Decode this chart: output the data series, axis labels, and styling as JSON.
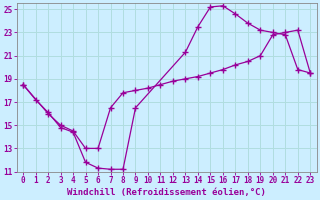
{
  "xlabel": "Windchill (Refroidissement éolien,°C)",
  "xlim": [
    -0.5,
    23.5
  ],
  "ylim": [
    11,
    25.5
  ],
  "xticks": [
    0,
    1,
    2,
    3,
    4,
    5,
    6,
    7,
    8,
    9,
    10,
    11,
    12,
    13,
    14,
    15,
    16,
    17,
    18,
    19,
    20,
    21,
    22,
    23
  ],
  "yticks": [
    11,
    13,
    15,
    17,
    19,
    21,
    23,
    25
  ],
  "bg_color": "#cceeff",
  "line_color": "#990099",
  "curve1_x": [
    0,
    1,
    2,
    3,
    4,
    5,
    6,
    7,
    8,
    9,
    13,
    14,
    15,
    16,
    17,
    18,
    19,
    20,
    21,
    22,
    23
  ],
  "curve1_y": [
    18.5,
    17.2,
    16.1,
    14.8,
    14.4,
    11.8,
    11.3,
    11.2,
    11.2,
    16.5,
    21.3,
    23.5,
    25.2,
    25.3,
    24.6,
    23.8,
    23.2,
    23.0,
    22.8,
    19.8,
    19.5
  ],
  "curve2_x": [
    0,
    2,
    3,
    4,
    5,
    6,
    7,
    8,
    9,
    10,
    11,
    12,
    13,
    14,
    15,
    16,
    17,
    18,
    19,
    20,
    21,
    22,
    23
  ],
  "curve2_y": [
    18.5,
    16.0,
    15.0,
    14.5,
    13.0,
    13.0,
    16.5,
    17.8,
    18.0,
    18.2,
    18.5,
    18.8,
    19.0,
    19.2,
    19.5,
    19.8,
    20.2,
    20.5,
    21.0,
    22.8,
    23.0,
    23.2,
    19.5
  ],
  "grid_color": "#b0dde0",
  "tick_fontsize": 5.5,
  "label_fontsize": 6.5,
  "figw": 3.2,
  "figh": 2.0,
  "dpi": 100
}
